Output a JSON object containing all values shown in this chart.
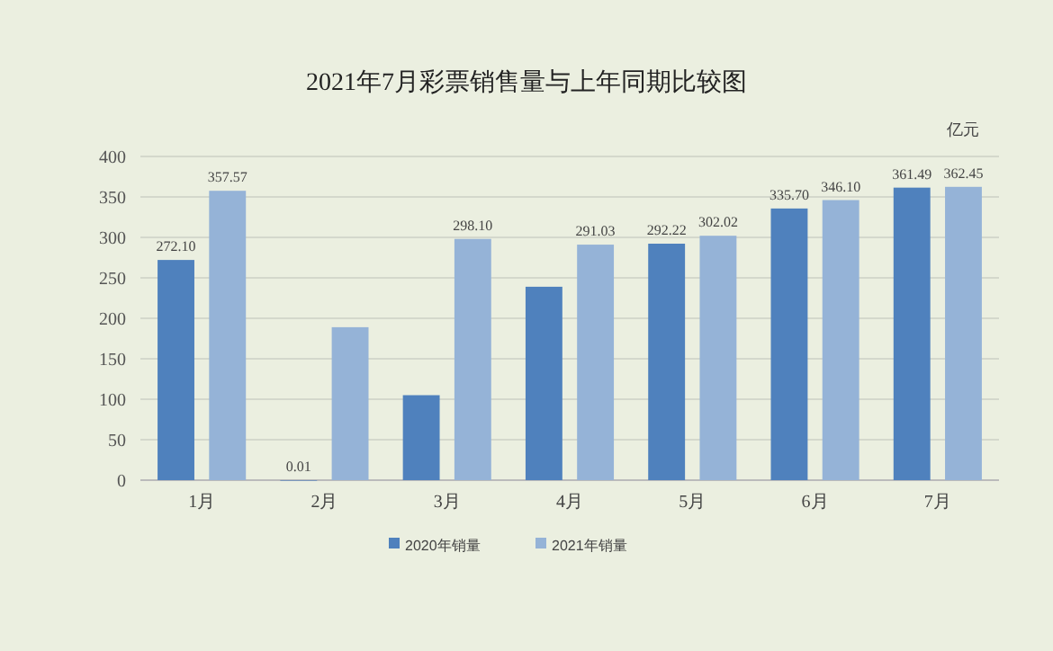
{
  "chart_data": {
    "type": "bar",
    "title": "2021年7月彩票销售量与上年同期比较图",
    "categories": [
      "1月",
      "2月",
      "3月",
      "4月",
      "5月",
      "6月",
      "7月"
    ],
    "series": [
      {
        "name": "2020年销量",
        "color": "#4f81bd",
        "values": [
          272.1,
          0.01,
          105,
          239,
          292.22,
          335.7,
          361.49
        ],
        "value_labels": [
          "272.10",
          "0.01",
          null,
          null,
          "292.22",
          "335.70",
          "361.49"
        ]
      },
      {
        "name": "2021年销量",
        "color": "#95b3d7",
        "values": [
          357.57,
          189,
          298.1,
          291.03,
          302.02,
          346.1,
          362.45
        ],
        "value_labels": [
          "357.57",
          null,
          "298.10",
          "291.03",
          "302.02",
          "346.10",
          "362.45"
        ]
      }
    ],
    "ylim": [
      0,
      400
    ],
    "yticks": [
      0,
      50,
      100,
      150,
      200,
      250,
      300,
      350,
      400
    ],
    "grid": "y",
    "legend": "bottom",
    "annotations": [
      "亿元"
    ]
  }
}
